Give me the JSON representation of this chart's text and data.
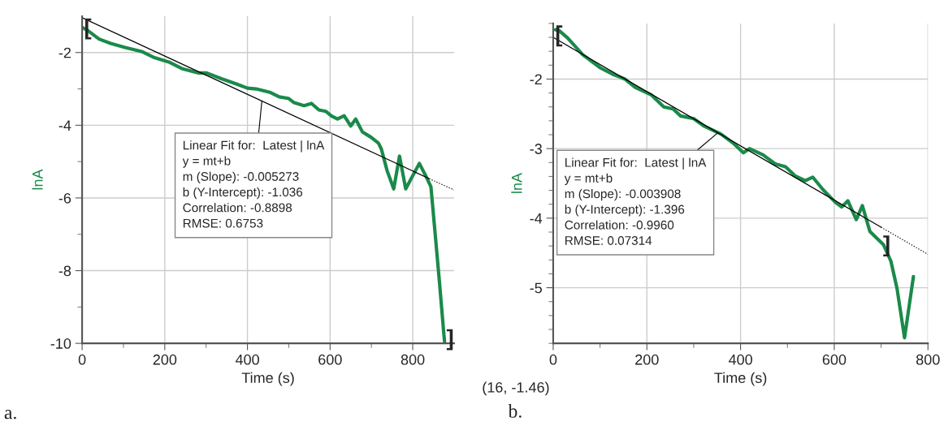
{
  "chart_data": [
    {
      "type": "line",
      "xlabel": "Time (s)",
      "ylabel": "lnA",
      "xlim": [
        0,
        900
      ],
      "ylim": [
        -10,
        -1
      ],
      "xticks": [
        0,
        {
          "value": 100,
          "label": null
        },
        200,
        {
          "value": 300,
          "label": null
        },
        400,
        {
          "value": 500,
          "label": null
        },
        600,
        {
          "value": 700,
          "label": null
        },
        800
      ],
      "yticks": [
        -2,
        {
          "value": -3,
          "label": null
        },
        -4,
        {
          "value": -5,
          "label": null
        },
        -6,
        {
          "value": -7,
          "label": null
        },
        -8,
        {
          "value": -9,
          "label": null
        },
        -10
      ],
      "grid": true,
      "series": [
        {
          "color": "#1a8a4a",
          "x": [
            2,
            13,
            41,
            69,
            104,
            146,
            175,
            210,
            241,
            280,
            301,
            337,
            372,
            400,
            421,
            456,
            477,
            499,
            513,
            537,
            555,
            573,
            590,
            604,
            618,
            634,
            650,
            662,
            678,
            699,
            717,
            724,
            738,
            754,
            768,
            783,
            816,
            834,
            844,
            855,
            865,
            875,
            877
          ],
          "values": [
            -1.32,
            -1.39,
            -1.63,
            -1.75,
            -1.86,
            -1.98,
            -2.14,
            -2.26,
            -2.44,
            -2.56,
            -2.56,
            -2.72,
            -2.86,
            -2.98,
            -3.0,
            -3.1,
            -3.22,
            -3.26,
            -3.38,
            -3.46,
            -3.4,
            -3.58,
            -3.62,
            -3.75,
            -3.83,
            -3.74,
            -4.02,
            -3.83,
            -4.18,
            -4.33,
            -4.49,
            -4.65,
            -5.25,
            -5.75,
            -4.85,
            -5.75,
            -5.05,
            -5.45,
            -5.69,
            -7.08,
            -8.36,
            -9.71,
            -9.95
          ]
        },
        {
          "type": "line",
          "color": "#000000",
          "line_style": "solid",
          "x": [
            0,
            840
          ],
          "values": [
            -1.04,
            -5.47
          ]
        },
        {
          "type": "line",
          "color": "#000000",
          "line_style": "dotted",
          "x": [
            840,
            900
          ],
          "values": [
            -5.47,
            -5.78
          ]
        }
      ],
      "annotations": [
        {
          "text": "Linear Fit for:  Latest | lnA\ny = mt+b\nm (Slope): -0.005273\nb (Y-Intercept): -1.036\nCorrelation: -0.8898\nRMSE: 0.6753",
          "x": 435,
          "y": -3.33
        },
        {
          "text": "[",
          "x": 0,
          "y": -1.35
        },
        {
          "text": "]",
          "x": 877,
          "y": -9.9
        },
        "a."
      ]
    },
    {
      "type": "line",
      "xlabel": "Time (s)",
      "ylabel": "lnA",
      "xlim": [
        0,
        800
      ],
      "ylim": [
        -5.8,
        -1.2
      ],
      "xticks": [
        0,
        {
          "value": 100,
          "label": null
        },
        200,
        {
          "value": 300,
          "label": null
        },
        400,
        {
          "value": 500,
          "label": null
        },
        600,
        {
          "value": 700,
          "label": null
        },
        800
      ],
      "yticks": [
        {
          "value": -1.2,
          "label": null
        },
        {
          "value": -1.4,
          "label": null
        },
        {
          "value": -1.6,
          "label": null
        },
        {
          "value": -1.8,
          "label": null
        },
        -2,
        {
          "value": -2.2,
          "label": null
        },
        {
          "value": -2.4,
          "label": null
        },
        {
          "value": -2.6,
          "label": null
        },
        {
          "value": -2.8,
          "label": null
        },
        -3,
        {
          "value": -3.2,
          "label": null
        },
        {
          "value": -3.4,
          "label": null
        },
        {
          "value": -3.6,
          "label": null
        },
        {
          "value": -3.8,
          "label": null
        },
        -4,
        {
          "value": -4.2,
          "label": null
        },
        {
          "value": -4.4,
          "label": null
        },
        {
          "value": -4.6,
          "label": null
        },
        {
          "value": -4.8,
          "label": null
        },
        -5,
        {
          "value": -5.2,
          "label": null
        },
        {
          "value": -5.4,
          "label": null
        },
        {
          "value": -5.6,
          "label": null
        },
        {
          "value": -5.8,
          "label": null
        }
      ],
      "grid": true,
      "series": [
        {
          "color": "#1a8a4a",
          "x": [
            5,
            12,
            31,
            63,
            101,
            127,
            153,
            175,
            210,
            236,
            256,
            272,
            300,
            323,
            358,
            384,
            406,
            419,
            448,
            474,
            496,
            516,
            538,
            554,
            576,
            602,
            616,
            629,
            647,
            660,
            676,
            705,
            721,
            734,
            750,
            769
          ],
          "values": [
            -1.29,
            -1.3,
            -1.41,
            -1.65,
            -1.84,
            -1.93,
            -2.0,
            -2.12,
            -2.23,
            -2.4,
            -2.43,
            -2.53,
            -2.57,
            -2.68,
            -2.79,
            -2.92,
            -3.06,
            -3.0,
            -3.09,
            -3.22,
            -3.26,
            -3.39,
            -3.46,
            -3.41,
            -3.59,
            -3.77,
            -3.84,
            -3.75,
            -4.02,
            -3.82,
            -4.19,
            -4.38,
            -4.62,
            -5.01,
            -5.72,
            -4.84
          ]
        },
        {
          "type": "line",
          "color": "#000000",
          "line_style": "solid",
          "x": [
            0,
            700
          ],
          "values": [
            -1.4,
            -4.13
          ]
        },
        {
          "type": "line",
          "color": "#000000",
          "line_style": "dotted",
          "x": [
            700,
            800
          ],
          "values": [
            -4.13,
            -4.52
          ]
        }
      ],
      "annotations": [
        {
          "text": "Linear Fit for:  Latest | lnA\ny = mt+b\nm (Slope): -0.003908\nb (Y-Intercept): -1.396\nCorrelation: -0.9960\nRMSE: 0.07314",
          "x": 352,
          "y": -2.77
        },
        {
          "text": "[",
          "x": 0,
          "y": -1.38
        },
        {
          "text": "]",
          "x": 700,
          "y": -4.4
        },
        "(16, -1.46)",
        "b."
      ]
    }
  ]
}
